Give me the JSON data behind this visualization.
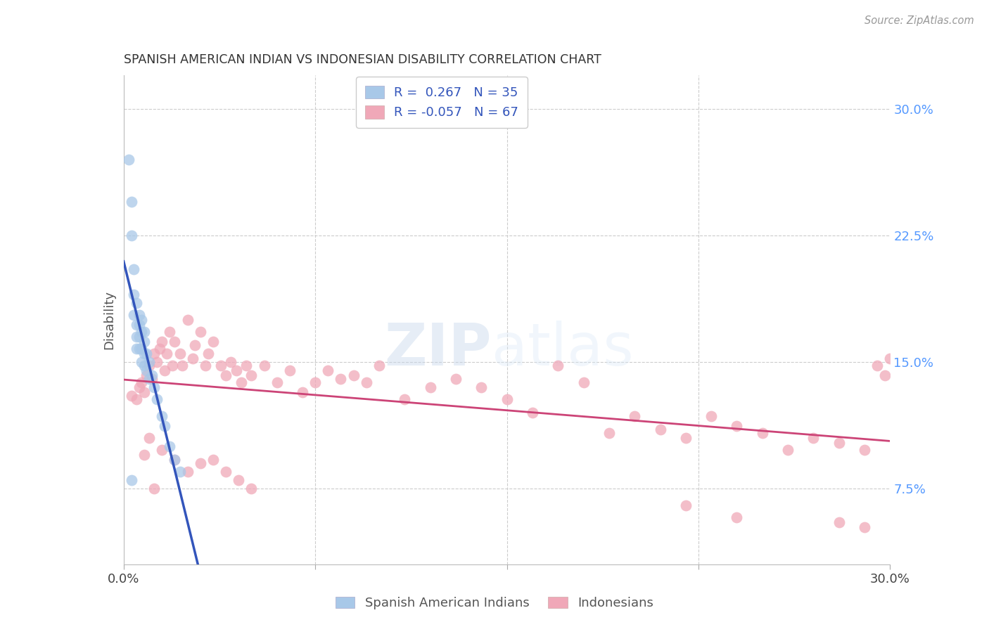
{
  "title": "SPANISH AMERICAN INDIAN VS INDONESIAN DISABILITY CORRELATION CHART",
  "source": "Source: ZipAtlas.com",
  "ylabel": "Disability",
  "xlim": [
    0.0,
    0.3
  ],
  "ylim": [
    0.03,
    0.32
  ],
  "blue_color": "#a8c8e8",
  "pink_color": "#f0a8b8",
  "trendline_blue_solid": "#3355bb",
  "trendline_blue_dashed": "#99bbdd",
  "trendline_pink": "#cc4477",
  "legend_text_1": "R =  0.267   N = 35",
  "legend_text_2": "R = -0.057   N = 67",
  "watermark_text": "ZIPatlas",
  "grid_color": "#cccccc",
  "right_tick_color": "#5599ff",
  "sai_x": [
    0.002,
    0.003,
    0.003,
    0.004,
    0.004,
    0.004,
    0.005,
    0.005,
    0.005,
    0.005,
    0.006,
    0.006,
    0.006,
    0.006,
    0.007,
    0.007,
    0.007,
    0.007,
    0.008,
    0.008,
    0.008,
    0.008,
    0.009,
    0.009,
    0.01,
    0.01,
    0.011,
    0.012,
    0.013,
    0.015,
    0.016,
    0.018,
    0.02,
    0.022,
    0.003
  ],
  "sai_y": [
    0.27,
    0.245,
    0.225,
    0.205,
    0.19,
    0.178,
    0.185,
    0.172,
    0.165,
    0.158,
    0.178,
    0.172,
    0.165,
    0.158,
    0.175,
    0.168,
    0.158,
    0.15,
    0.168,
    0.162,
    0.155,
    0.148,
    0.155,
    0.145,
    0.15,
    0.14,
    0.142,
    0.135,
    0.128,
    0.118,
    0.112,
    0.1,
    0.092,
    0.085,
    0.08
  ],
  "indo_x": [
    0.003,
    0.005,
    0.006,
    0.007,
    0.008,
    0.009,
    0.01,
    0.011,
    0.012,
    0.013,
    0.014,
    0.015,
    0.016,
    0.017,
    0.018,
    0.019,
    0.02,
    0.022,
    0.023,
    0.025,
    0.027,
    0.028,
    0.03,
    0.032,
    0.033,
    0.035,
    0.038,
    0.04,
    0.042,
    0.044,
    0.046,
    0.048,
    0.05,
    0.055,
    0.06,
    0.065,
    0.07,
    0.075,
    0.08,
    0.085,
    0.09,
    0.095,
    0.1,
    0.11,
    0.12,
    0.13,
    0.14,
    0.15,
    0.16,
    0.17,
    0.18,
    0.19,
    0.2,
    0.21,
    0.22,
    0.23,
    0.24,
    0.25,
    0.26,
    0.27,
    0.28,
    0.29,
    0.295,
    0.298,
    0.3,
    0.008,
    0.012
  ],
  "indo_y": [
    0.13,
    0.128,
    0.135,
    0.138,
    0.132,
    0.142,
    0.148,
    0.14,
    0.155,
    0.15,
    0.158,
    0.162,
    0.145,
    0.155,
    0.168,
    0.148,
    0.162,
    0.155,
    0.148,
    0.175,
    0.152,
    0.16,
    0.168,
    0.148,
    0.155,
    0.162,
    0.148,
    0.142,
    0.15,
    0.145,
    0.138,
    0.148,
    0.142,
    0.148,
    0.138,
    0.145,
    0.132,
    0.138,
    0.145,
    0.14,
    0.142,
    0.138,
    0.148,
    0.128,
    0.135,
    0.14,
    0.135,
    0.128,
    0.12,
    0.148,
    0.138,
    0.108,
    0.118,
    0.11,
    0.105,
    0.118,
    0.112,
    0.108,
    0.098,
    0.105,
    0.102,
    0.098,
    0.148,
    0.142,
    0.152,
    0.095,
    0.075
  ],
  "indo_low_x": [
    0.01,
    0.015,
    0.02,
    0.025,
    0.03,
    0.035,
    0.04,
    0.045,
    0.05,
    0.22,
    0.24,
    0.28,
    0.29
  ],
  "indo_low_y": [
    0.105,
    0.098,
    0.092,
    0.085,
    0.09,
    0.092,
    0.085,
    0.08,
    0.075,
    0.065,
    0.058,
    0.055,
    0.052
  ]
}
